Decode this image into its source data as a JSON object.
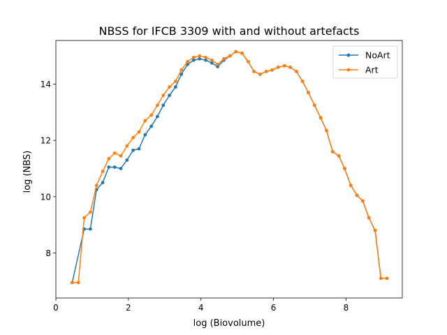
{
  "chart_data": {
    "type": "line",
    "title": "NBSS for IFCB 3309 with and without artefacts",
    "xlabel": "log (Biovolume)",
    "ylabel": "log (NBS)",
    "xlim": [
      0.0,
      9.55
    ],
    "ylim": [
      6.4,
      15.55
    ],
    "xticks": [
      0,
      2,
      4,
      6,
      8
    ],
    "yticks": [
      8,
      10,
      12,
      14
    ],
    "grid": false,
    "legend_position": "top-right",
    "series": [
      {
        "name": "NoArt",
        "color": "#1f77b4",
        "x": [
          0.45,
          0.78,
          0.95,
          1.12,
          1.29,
          1.46,
          1.62,
          1.79,
          1.96,
          2.13,
          2.29,
          2.46,
          2.63,
          2.8,
          2.96,
          3.13,
          3.3,
          3.46,
          3.63,
          3.8,
          3.96,
          4.13,
          4.3,
          4.46,
          4.63,
          4.8,
          4.96,
          5.13,
          5.3,
          5.46,
          5.63,
          5.8,
          5.96,
          6.13,
          6.3,
          6.46,
          6.63,
          6.8,
          6.96,
          7.13,
          7.3,
          7.46,
          7.63,
          7.8,
          7.96,
          8.13,
          8.3,
          8.46,
          8.63,
          8.8,
          8.96,
          9.13
        ],
        "y": [
          6.95,
          8.85,
          8.85,
          10.25,
          10.5,
          11.05,
          11.05,
          11.0,
          11.3,
          11.65,
          11.7,
          12.2,
          12.5,
          12.85,
          13.25,
          13.6,
          13.9,
          14.35,
          14.7,
          14.85,
          14.9,
          14.85,
          14.75,
          14.62,
          14.85,
          15.0,
          15.15,
          15.1,
          14.8,
          14.45,
          14.35,
          14.45,
          14.5,
          14.6,
          14.65,
          14.6,
          14.45,
          14.1,
          13.7,
          13.25,
          12.8,
          12.35,
          11.6,
          11.45,
          11.0,
          10.4,
          10.05,
          9.85,
          9.25,
          8.8,
          7.1,
          7.1
        ]
      },
      {
        "name": "Art",
        "color": "#ff7f0e",
        "x": [
          0.45,
          0.62,
          0.78,
          0.95,
          1.12,
          1.29,
          1.46,
          1.62,
          1.79,
          1.96,
          2.13,
          2.29,
          2.46,
          2.63,
          2.8,
          2.96,
          3.13,
          3.3,
          3.46,
          3.63,
          3.8,
          3.96,
          4.13,
          4.3,
          4.46,
          4.63,
          4.8,
          4.96,
          5.13,
          5.3,
          5.46,
          5.63,
          5.8,
          5.96,
          6.13,
          6.3,
          6.46,
          6.63,
          6.8,
          6.96,
          7.13,
          7.3,
          7.46,
          7.63,
          7.8,
          7.96,
          8.13,
          8.3,
          8.46,
          8.63,
          8.8,
          8.96,
          9.13
        ],
        "y": [
          6.95,
          6.95,
          9.25,
          9.45,
          10.4,
          10.9,
          11.35,
          11.55,
          11.45,
          11.8,
          12.1,
          12.3,
          12.7,
          12.9,
          13.25,
          13.6,
          13.9,
          14.1,
          14.5,
          14.8,
          14.95,
          15.0,
          14.95,
          14.85,
          14.7,
          14.9,
          15.0,
          15.15,
          15.1,
          14.8,
          14.45,
          14.35,
          14.45,
          14.5,
          14.6,
          14.65,
          14.6,
          14.45,
          14.1,
          13.7,
          13.25,
          12.8,
          12.35,
          11.6,
          11.45,
          11.0,
          10.4,
          10.05,
          9.85,
          9.25,
          8.8,
          7.1,
          7.1
        ]
      }
    ]
  }
}
